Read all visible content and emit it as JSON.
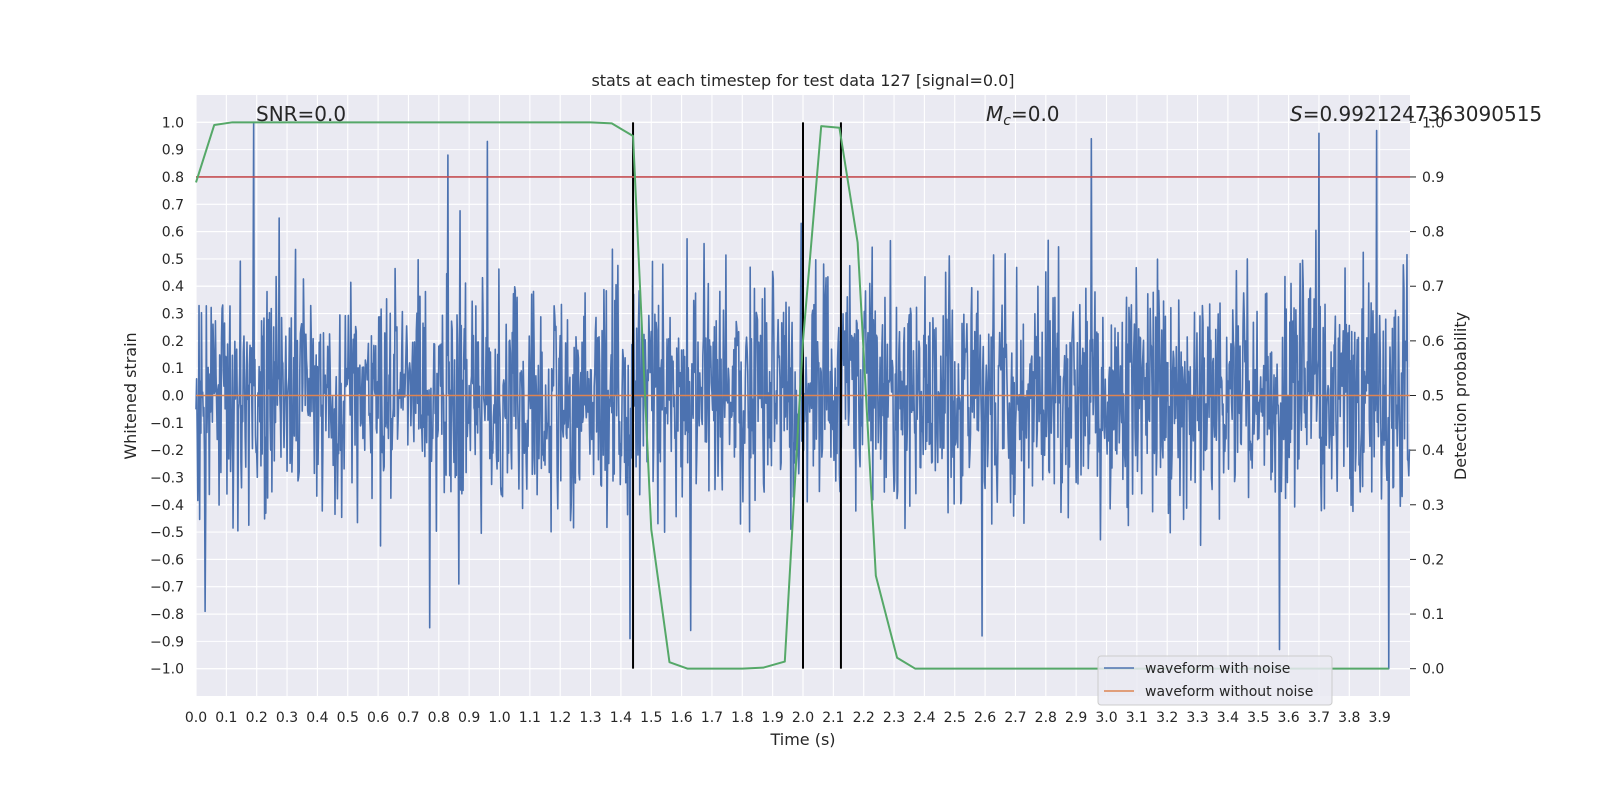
{
  "chart_data": {
    "type": "line",
    "title": "stats at each timestep for test data 127 [signal=0.0]",
    "xlabel": "Time (s)",
    "ylabel": "Whitened strain",
    "y2label": "Detection probability",
    "xlim": [
      0.0,
      4.0
    ],
    "ylim": [
      -1.1,
      1.1
    ],
    "y2lim": [
      -0.05,
      1.05
    ],
    "grid": true,
    "xticks": [
      "0.0",
      "0.1",
      "0.2",
      "0.3",
      "0.4",
      "0.5",
      "0.6",
      "0.7",
      "0.8",
      "0.9",
      "1.0",
      "1.1",
      "1.2",
      "1.3",
      "1.4",
      "1.5",
      "1.6",
      "1.7",
      "1.8",
      "1.9",
      "2.0",
      "2.1",
      "2.2",
      "2.3",
      "2.4",
      "2.5",
      "2.6",
      "2.7",
      "2.8",
      "2.9",
      "3.0",
      "3.1",
      "3.2",
      "3.3",
      "3.4",
      "3.5",
      "3.6",
      "3.7",
      "3.8",
      "3.9"
    ],
    "yticks": [
      "1.0",
      "0.9",
      "0.8",
      "0.7",
      "0.6",
      "0.5",
      "0.4",
      "0.3",
      "0.2",
      "0.1",
      "0.0",
      "−0.1",
      "−0.2",
      "−0.3",
      "−0.4",
      "−0.5",
      "−0.6",
      "−0.7",
      "−0.8",
      "−0.9",
      "−1.0"
    ],
    "y2ticks": [
      "1.0",
      "0.9",
      "0.8",
      "0.7",
      "0.6",
      "0.5",
      "0.4",
      "0.3",
      "0.2",
      "0.1",
      "0.0"
    ],
    "annotations": {
      "snr": "SNR=0.0",
      "mc_symbol": "M",
      "mc_sub": "c",
      "mc_value": "=0.0",
      "s_symbol": "S",
      "s_value": "=0.9921247363090515"
    },
    "legend": {
      "placement": "lower-right",
      "entries": [
        "waveform with noise",
        "waveform without noise"
      ]
    },
    "series": [
      {
        "name": "waveform with noise",
        "color": "#4c72b0",
        "kind": "noise",
        "envelope": {
          "typical_abs": 0.35,
          "max": 1.0,
          "min": -1.0
        },
        "spikes": [
          {
            "t": 0.19,
            "v": 1.0
          },
          {
            "t": 0.83,
            "v": 0.88
          },
          {
            "t": 0.96,
            "v": 0.93
          },
          {
            "t": 2.95,
            "v": 0.94
          },
          {
            "t": 3.7,
            "v": 0.96
          },
          {
            "t": 3.89,
            "v": 0.97
          },
          {
            "t": 0.03,
            "v": -0.79
          },
          {
            "t": 0.77,
            "v": -0.85
          },
          {
            "t": 1.43,
            "v": -0.89
          },
          {
            "t": 1.63,
            "v": -0.86
          },
          {
            "t": 2.59,
            "v": -0.88
          },
          {
            "t": 3.57,
            "v": -0.93
          },
          {
            "t": 3.93,
            "v": -1.0
          }
        ]
      },
      {
        "name": "waveform without noise",
        "color": "#dd8452",
        "x": [
          0.0,
          4.0
        ],
        "y": [
          0.0,
          0.0
        ]
      },
      {
        "name": "detection probability",
        "color": "#55a868",
        "axis": "right",
        "x": [
          0.0,
          0.06,
          0.12,
          0.2,
          0.5,
          1.0,
          1.3,
          1.37,
          1.44,
          1.5,
          1.56,
          1.62,
          1.7,
          1.8,
          1.87,
          1.94,
          2.0,
          2.06,
          2.12,
          2.18,
          2.24,
          2.31,
          2.37,
          2.5,
          3.0,
          3.5,
          3.93
        ],
        "y": [
          0.89,
          0.995,
          1.0,
          1.0,
          1.0,
          1.0,
          1.0,
          0.998,
          0.975,
          0.255,
          0.012,
          0.0,
          0.0,
          0.0,
          0.002,
          0.013,
          0.6,
          0.993,
          0.99,
          0.78,
          0.17,
          0.02,
          0.0,
          0.0,
          0.0,
          0.0,
          0.0
        ]
      },
      {
        "name": "threshold",
        "color": "#c44e52",
        "axis": "right",
        "x": [
          0.0,
          4.0
        ],
        "y": [
          0.9,
          0.9
        ]
      }
    ],
    "vlines": [
      {
        "t": 1.44,
        "from": -1.0,
        "to": 1.0,
        "color": "#000000"
      },
      {
        "t": 2.0,
        "from": -1.0,
        "to": 1.0,
        "color": "#000000"
      },
      {
        "t": 2.125,
        "from": -1.0,
        "to": 1.0,
        "color": "#000000"
      }
    ],
    "background": "#eaeaf2",
    "grid_color": "#ffffff"
  }
}
